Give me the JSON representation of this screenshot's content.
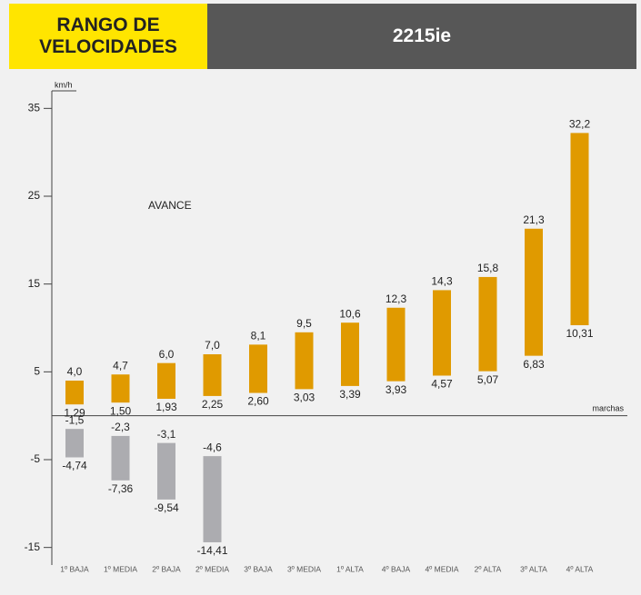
{
  "chart_data": {
    "type": "range-bar",
    "title": "RANGO DE VELOCIDADES",
    "subtitle": "2215ie",
    "y_label": "km/h",
    "x_label": "marchas",
    "annotation": "AVANCE",
    "categories": [
      "1º BAJA",
      "1º MEDIA",
      "2º BAJA",
      "2º MEDIA",
      "3º BAJA",
      "3º MEDIA",
      "1º ALTA",
      "4º BAJA",
      "4º MEDIA",
      "2º ALTA",
      "3º ALTA",
      "4º ALTA"
    ],
    "ylim": [
      -17,
      37
    ],
    "yticks": [
      -15,
      -5,
      5,
      15,
      25,
      35
    ],
    "series": [
      {
        "color": "#e09a00",
        "low": [
          1.29,
          1.5,
          1.93,
          2.25,
          2.6,
          3.03,
          3.39,
          3.93,
          4.57,
          5.07,
          6.83,
          10.31
        ],
        "low_labels": [
          "1,29",
          "1,50",
          "1,93",
          "2,25",
          "2,60",
          "3,03",
          "3,39",
          "3,93",
          "4,57",
          "5,07",
          "6,83",
          "10,31"
        ],
        "high": [
          4.0,
          4.7,
          6.0,
          7.0,
          8.1,
          9.5,
          10.6,
          12.3,
          14.3,
          15.8,
          21.3,
          32.2
        ],
        "high_labels": [
          "4,0",
          "4,7",
          "6,0",
          "7,0",
          "8,1",
          "9,5",
          "10,6",
          "12,3",
          "14,3",
          "15,8",
          "21,3",
          "32,2"
        ]
      },
      {
        "color": "#acacb0",
        "low": [
          -4.74,
          -7.36,
          -9.54,
          -14.41
        ],
        "low_labels": [
          "-4,74",
          "-7,36",
          "-9,54",
          "-14,41"
        ],
        "high": [
          -1.5,
          -2.3,
          -3.1,
          -4.6
        ],
        "high_labels": [
          "-1,5",
          "-2,3",
          "-3,1",
          "-4,6"
        ]
      }
    ]
  }
}
